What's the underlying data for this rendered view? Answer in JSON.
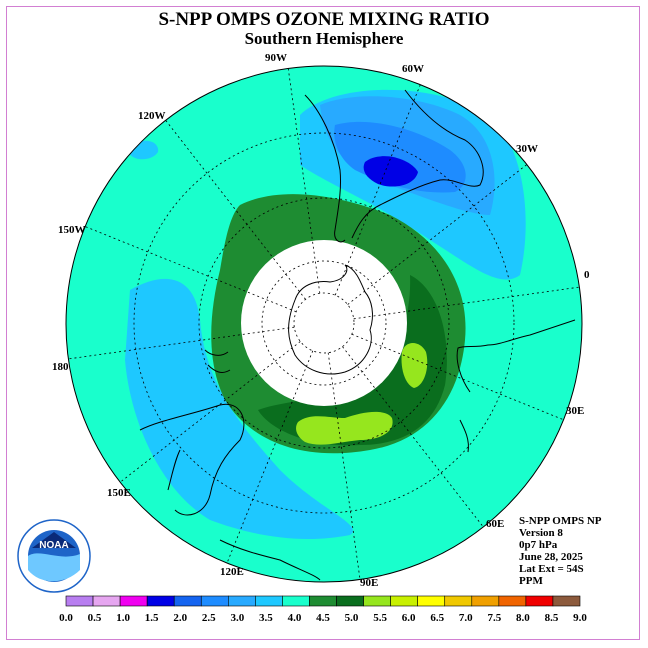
{
  "header": {
    "title": "S-NPP OMPS OZONE MIXING RATIO",
    "subtitle": "Southern Hemisphere"
  },
  "map": {
    "projection": "south-polar-stereographic",
    "longitude_labels": [
      "90W",
      "60W",
      "30W",
      "0",
      "30E",
      "60E",
      "90E",
      "120E",
      "150E",
      "180",
      "150W",
      "120W"
    ],
    "colors": {
      "background_value": "#19ffcc",
      "no_data": "#ffffff",
      "coast": "#000000",
      "grid": "#000000"
    }
  },
  "legend": {
    "tick_labels": [
      "0.0",
      "0.5",
      "1.0",
      "1.5",
      "2.0",
      "2.5",
      "3.0",
      "3.5",
      "4.0",
      "4.5",
      "5.0",
      "5.5",
      "6.0",
      "6.5",
      "7.0",
      "7.5",
      "8.0",
      "8.5",
      "9.0"
    ],
    "colors": [
      "#b87ef0",
      "#e6a6f0",
      "#f000f0",
      "#0000e6",
      "#1464f0",
      "#1e8cff",
      "#28aaff",
      "#1ec8ff",
      "#19ffcc",
      "#1e8c32",
      "#0a6e1e",
      "#96e61e",
      "#c8f000",
      "#ffff00",
      "#f0c800",
      "#f0a000",
      "#f06400",
      "#f00000",
      "#8c5a3c"
    ]
  },
  "info": {
    "lines": [
      "S-NPP OMPS NP",
      "Version 8",
      "0p7 hPa",
      "June 28, 2025",
      "Lat Ext = 54S",
      "PPM"
    ]
  },
  "logo": {
    "text": "NOAA"
  }
}
